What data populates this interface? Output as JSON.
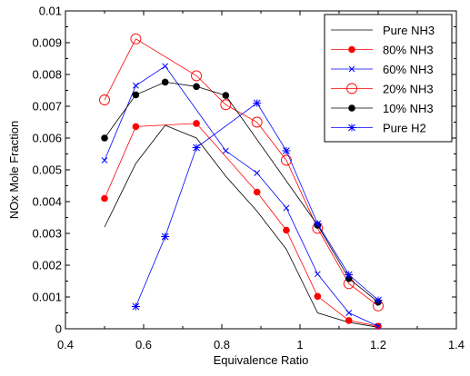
{
  "chart_data": {
    "type": "line",
    "title": "",
    "xlabel": "Equivalence Ratio",
    "ylabel": "NOx Mole Fraction",
    "xlim": [
      0.4,
      1.4
    ],
    "ylim": [
      0,
      0.01
    ],
    "grid": false,
    "legend_position": "top-right",
    "x_ticks": [
      0.4,
      0.6,
      0.8,
      1.0,
      1.2,
      1.4
    ],
    "x_tick_labels": [
      "0.4",
      "0.6",
      "0.8",
      "1",
      "1.2",
      "1.4"
    ],
    "y_ticks": [
      0,
      0.001,
      0.002,
      0.003,
      0.004,
      0.005,
      0.006,
      0.007,
      0.008,
      0.009,
      0.01
    ],
    "y_tick_labels": [
      "0",
      "0.001",
      "0.002",
      "0.003",
      "0.004",
      "0.005",
      "0.006",
      "0.007",
      "0.008",
      "0.009",
      "0.01"
    ],
    "series": [
      {
        "name": "Pure NH3",
        "color": "#000000",
        "marker": "none",
        "x": [
          0.5,
          0.58,
          0.655,
          0.735,
          0.81,
          0.89,
          0.965,
          1.045,
          1.125,
          1.2
        ],
        "y": [
          0.0032,
          0.0052,
          0.0064,
          0.006,
          0.0048,
          0.0037,
          0.0025,
          0.0005,
          0.0002,
          5e-05
        ]
      },
      {
        "name": "80% NH3",
        "color": "#ff0000",
        "marker": "filled-circle",
        "x": [
          0.5,
          0.58,
          0.735,
          0.89,
          0.965,
          1.045,
          1.125,
          1.2
        ],
        "y": [
          0.0041,
          0.00636,
          0.00646,
          0.0043,
          0.0031,
          0.00102,
          0.00026,
          8e-05
        ]
      },
      {
        "name": "60% NH3",
        "color": "#0000ff",
        "marker": "x",
        "x": [
          0.5,
          0.58,
          0.655,
          0.81,
          0.89,
          0.965,
          1.045,
          1.125,
          1.2
        ],
        "y": [
          0.0053,
          0.00765,
          0.00826,
          0.0056,
          0.0049,
          0.0038,
          0.00172,
          0.0005,
          8e-05
        ]
      },
      {
        "name": "20% NH3",
        "color": "#ff0000",
        "marker": "open-circle",
        "x": [
          0.5,
          0.58,
          0.735,
          0.81,
          0.89,
          0.965,
          1.045,
          1.125,
          1.2
        ],
        "y": [
          0.0072,
          0.00912,
          0.00796,
          0.00705,
          0.0065,
          0.0053,
          0.00316,
          0.00142,
          0.00072
        ]
      },
      {
        "name": "10% NH3",
        "color": "#000000",
        "marker": "filled-circle",
        "x": [
          0.5,
          0.58,
          0.655,
          0.735,
          0.81,
          1.045,
          1.125,
          1.2
        ],
        "y": [
          0.006,
          0.00736,
          0.00776,
          0.00762,
          0.00734,
          0.00326,
          0.00158,
          0.00084
        ]
      },
      {
        "name": "Pure H2",
        "color": "#0000ff",
        "marker": "asterisk",
        "x": [
          0.58,
          0.655,
          0.735,
          0.89,
          0.965,
          1.045,
          1.125,
          1.2
        ],
        "y": [
          0.0007,
          0.0029,
          0.0057,
          0.0071,
          0.0056,
          0.0033,
          0.0017,
          0.0009
        ]
      }
    ]
  }
}
